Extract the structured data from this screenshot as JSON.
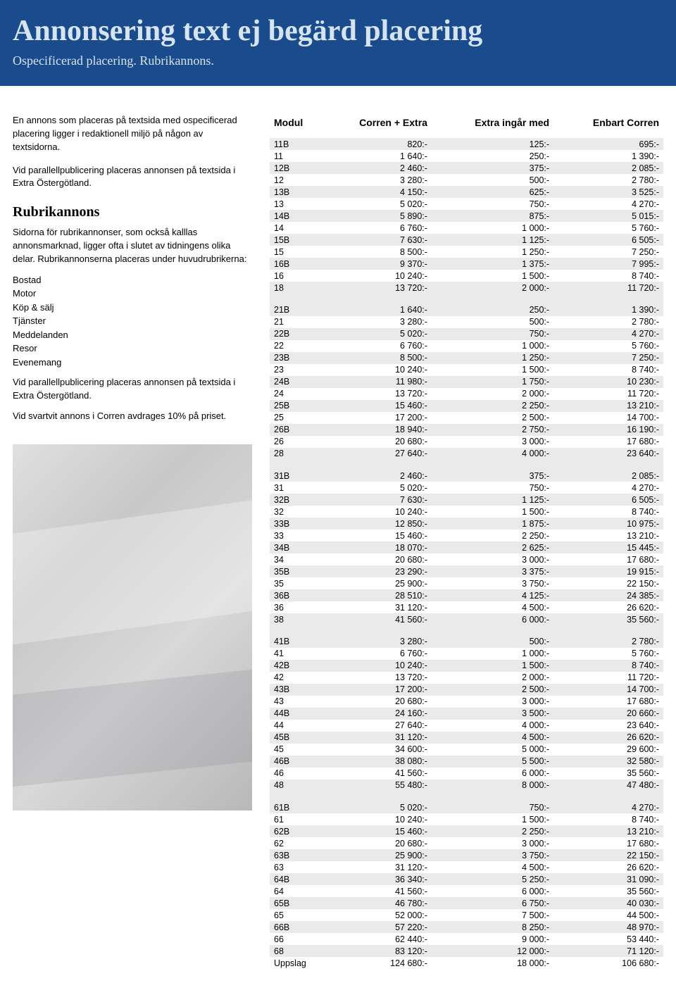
{
  "header": {
    "title": "Annonsering text ej begärd placering",
    "subtitle": "Ospecificerad placering. Rubrikannons."
  },
  "left": {
    "intro1": "En annons som placeras på textsida med ospecificerad placering ligger i redaktionell miljö på någon av textsidorna.",
    "intro2": "Vid parallellpublicering placeras annonsen på textsida i Extra Östergötland.",
    "sectionTitle": "Rubrikannons",
    "body1": "Sidorna för rubrikannonser, som också kalllas annonsmarknad, ligger ofta i slutet av tidningens olika delar. Rubrikannonserna placeras under huvudrubrikerna:",
    "categories": [
      "Bostad",
      "Motor",
      "Köp & sälj",
      "Tjänster",
      "Meddelanden",
      "Resor",
      "Evenemang"
    ],
    "body2": "Vid parallellpublicering placeras annonsen på textsida i Extra Östergötland.",
    "body3": "Vid svartvit annons i Corren avdrages 10% på priset."
  },
  "table": {
    "headers": [
      "Modul",
      "Corren + Extra",
      "Extra ingår med",
      "Enbart Corren"
    ],
    "groups": [
      [
        [
          "11B",
          "820:-",
          "125:-",
          "695:-"
        ],
        [
          "11",
          "1 640:-",
          "250:-",
          "1 390:-"
        ],
        [
          "12B",
          "2 460:-",
          "375:-",
          "2 085:-"
        ],
        [
          "12",
          "3 280:-",
          "500:-",
          "2 780:-"
        ],
        [
          "13B",
          "4 150:-",
          "625:-",
          "3 525:-"
        ],
        [
          "13",
          "5 020:-",
          "750:-",
          "4 270:-"
        ],
        [
          "14B",
          "5 890:-",
          "875:-",
          "5 015:-"
        ],
        [
          "14",
          "6 760:-",
          "1 000:-",
          "5 760:-"
        ],
        [
          "15B",
          "7 630:-",
          "1 125:-",
          "6 505:-"
        ],
        [
          "15",
          "8 500:-",
          "1 250:-",
          "7 250:-"
        ],
        [
          "16B",
          "9 370:-",
          "1 375:-",
          "7 995:-"
        ],
        [
          "16",
          "10 240:-",
          "1 500:-",
          "8 740:-"
        ],
        [
          "18",
          "13 720:-",
          "2 000:-",
          "11 720:-"
        ]
      ],
      [
        [
          "21B",
          "1 640:-",
          "250:-",
          "1 390:-"
        ],
        [
          "21",
          "3 280:-",
          "500:-",
          "2 780:-"
        ],
        [
          "22B",
          "5 020:-",
          "750:-",
          "4 270:-"
        ],
        [
          "22",
          "6 760:-",
          "1 000:-",
          "5 760:-"
        ],
        [
          "23B",
          "8 500:-",
          "1 250:-",
          "7 250:-"
        ],
        [
          "23",
          "10 240:-",
          "1 500:-",
          "8 740:-"
        ],
        [
          "24B",
          "11 980:-",
          "1 750:-",
          "10 230:-"
        ],
        [
          "24",
          "13 720:-",
          "2 000:-",
          "11 720:-"
        ],
        [
          "25B",
          "15 460:-",
          "2 250:-",
          "13 210:-"
        ],
        [
          "25",
          "17 200:-",
          "2 500:-",
          "14 700:-"
        ],
        [
          "26B",
          "18 940:-",
          "2 750:-",
          "16 190:-"
        ],
        [
          "26",
          "20 680:-",
          "3 000:-",
          "17 680:-"
        ],
        [
          "28",
          "27 640:-",
          "4 000:-",
          "23 640:-"
        ]
      ],
      [
        [
          "31B",
          "2 460:-",
          "375:-",
          "2 085:-"
        ],
        [
          "31",
          "5 020:-",
          "750:-",
          "4 270:-"
        ],
        [
          "32B",
          "7 630:-",
          "1 125:-",
          "6 505:-"
        ],
        [
          "32",
          "10 240:-",
          "1 500:-",
          "8 740:-"
        ],
        [
          "33B",
          "12 850:-",
          "1 875:-",
          "10 975:-"
        ],
        [
          "33",
          "15 460:-",
          "2 250:-",
          "13 210:-"
        ],
        [
          "34B",
          "18 070:-",
          "2 625:-",
          "15 445:-"
        ],
        [
          "34",
          "20 680:-",
          "3 000:-",
          "17 680:-"
        ],
        [
          "35B",
          "23 290:-",
          "3 375:-",
          "19 915:-"
        ],
        [
          "35",
          "25 900:-",
          "3 750:-",
          "22 150:-"
        ],
        [
          "36B",
          "28 510:-",
          "4 125:-",
          "24 385:-"
        ],
        [
          "36",
          "31 120:-",
          "4 500:-",
          "26 620:-"
        ],
        [
          "38",
          "41 560:-",
          "6 000:-",
          "35 560:-"
        ]
      ],
      [
        [
          "41B",
          "3 280:-",
          "500:-",
          "2 780:-"
        ],
        [
          "41",
          "6 760:-",
          "1 000:-",
          "5 760:-"
        ],
        [
          "42B",
          "10 240:-",
          "1 500:-",
          "8 740:-"
        ],
        [
          "42",
          "13 720:-",
          "2 000:-",
          "11 720:-"
        ],
        [
          "43B",
          "17 200:-",
          "2 500:-",
          "14 700:-"
        ],
        [
          "43",
          "20 680:-",
          "3 000:-",
          "17 680:-"
        ],
        [
          "44B",
          "24 160:-",
          "3 500:-",
          "20 660:-"
        ],
        [
          "44",
          "27 640:-",
          "4 000:-",
          "23 640:-"
        ],
        [
          "45B",
          "31 120:-",
          "4 500:-",
          "26 620:-"
        ],
        [
          "45",
          "34 600:-",
          "5 000:-",
          "29 600:-"
        ],
        [
          "46B",
          "38 080:-",
          "5 500:-",
          "32 580:-"
        ],
        [
          "46",
          "41 560:-",
          "6 000:-",
          "35 560:-"
        ],
        [
          "48",
          "55 480:-",
          "8 000:-",
          "47 480:-"
        ]
      ],
      [
        [
          "61B",
          "5 020:-",
          "750:-",
          "4 270:-"
        ],
        [
          "61",
          "10 240:-",
          "1 500:-",
          "8 740:-"
        ],
        [
          "62B",
          "15 460:-",
          "2 250:-",
          "13 210:-"
        ],
        [
          "62",
          "20 680:-",
          "3 000:-",
          "17 680:-"
        ],
        [
          "63B",
          "25 900:-",
          "3 750:-",
          "22 150:-"
        ],
        [
          "63",
          "31 120:-",
          "4 500:-",
          "26 620:-"
        ],
        [
          "64B",
          "36 340:-",
          "5 250:-",
          "31 090:-"
        ],
        [
          "64",
          "41 560:-",
          "6 000:-",
          "35 560:-"
        ],
        [
          "65B",
          "46 780:-",
          "6 750:-",
          "40 030:-"
        ],
        [
          "65",
          "52 000:-",
          "7 500:-",
          "44 500:-"
        ],
        [
          "66B",
          "57 220:-",
          "8 250:-",
          "48 970:-"
        ],
        [
          "66",
          "62 440:-",
          "9 000:-",
          "53 440:-"
        ],
        [
          "68",
          "83 120:-",
          "12 000:-",
          "71 120:-"
        ],
        [
          "Uppslag",
          "124 680:-",
          "18 000:-",
          "106 680:-"
        ]
      ]
    ]
  },
  "styling": {
    "header_bg": "#1a4b8c",
    "header_text": "#d6e4f0",
    "shade_bg": "#eaeaea",
    "title_fontsize": 42,
    "subtitle_fontsize": 18,
    "body_fontsize": 13,
    "table_fontsize": 12.5
  }
}
